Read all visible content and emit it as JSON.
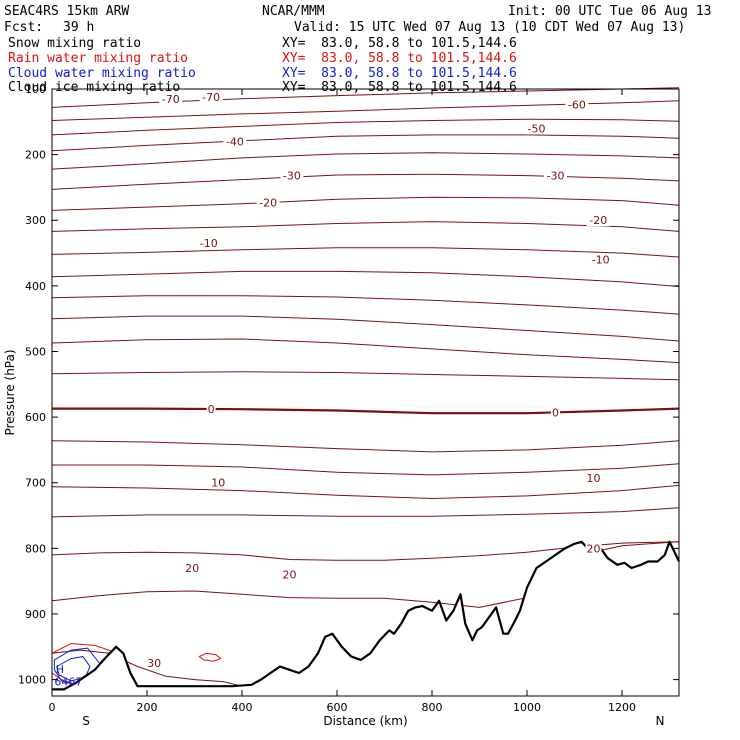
{
  "header": {
    "model": "SEAC4RS 15km ARW",
    "center": "NCAR/MMM",
    "init": "Init: 00 UTC Tue 06 Aug 13",
    "fcst_label": "Fcst:",
    "fcst_value": "39 h",
    "valid": "Valid: 15 UTC Wed 07 Aug 13 (10 CDT Wed 07 Aug 13)"
  },
  "legend": [
    {
      "label": "Snow mixing ratio",
      "xy": "XY=  83.0, 58.8 to 101.5,144.6",
      "color": "#000000"
    },
    {
      "label": "Rain water mixing ratio",
      "xy": "XY=  83.0, 58.8 to 101.5,144.6",
      "color": "#e01010"
    },
    {
      "label": "Cloud water mixing ratio",
      "xy": "XY=  83.0, 58.8 to 101.5,144.6",
      "color": "#1020d0"
    },
    {
      "label": "Cloud ice mixing ratio",
      "xy": "XY=  83.0, 58.8 to 101.5,144.6",
      "color": "#000000"
    }
  ],
  "chart_data": {
    "type": "line",
    "xlabel": "Distance (km)",
    "ylabel": "Pressure (hPa)",
    "xlim": [
      0,
      1320
    ],
    "ylim": [
      100,
      1025
    ],
    "y_reversed": true,
    "x_ticks": [
      0,
      200,
      400,
      600,
      800,
      1000,
      1200
    ],
    "y_ticks": [
      200,
      300,
      400,
      500,
      600,
      700,
      800,
      900,
      1000
    ],
    "y_top_tick": "100",
    "endpoints": {
      "left": "S",
      "right": "N"
    },
    "contour_color": "#7a1010",
    "terrain_color": "#000000",
    "isotherms": [
      {
        "x": [
          0,
          200,
          400,
          600,
          800,
          1000,
          1200,
          1320
        ],
        "y": [
          128,
          121,
          115,
          110,
          106,
          103,
          100,
          98
        ]
      },
      {
        "x": [
          0,
          200,
          400,
          600,
          800,
          1000,
          1200,
          1320
        ],
        "y": [
          148,
          143,
          138,
          134,
          129,
          125,
          121,
          118
        ]
      },
      {
        "x": [
          0,
          200,
          400,
          600,
          800,
          1000,
          1200,
          1320
        ],
        "y": [
          170,
          163,
          157,
          151,
          148,
          146,
          147,
          149
        ]
      },
      {
        "x": [
          0,
          200,
          400,
          600,
          800,
          1000,
          1200,
          1320
        ],
        "y": [
          194,
          186,
          179,
          172,
          170,
          170,
          172,
          175
        ]
      },
      {
        "x": [
          0,
          200,
          400,
          600,
          800,
          1000,
          1200,
          1320
        ],
        "y": [
          222,
          214,
          205,
          199,
          197,
          199,
          202,
          205
        ]
      },
      {
        "x": [
          0,
          200,
          400,
          600,
          800,
          1000,
          1200,
          1320
        ],
        "y": [
          253,
          245,
          238,
          231,
          230,
          232,
          236,
          240
        ]
      },
      {
        "x": [
          0,
          200,
          400,
          600,
          800,
          1000,
          1200,
          1320
        ],
        "y": [
          285,
          280,
          275,
          268,
          265,
          266,
          270,
          277
        ]
      },
      {
        "x": [
          0,
          200,
          400,
          600,
          800,
          1000,
          1200,
          1320
        ],
        "y": [
          317,
          313,
          310,
          305,
          302,
          305,
          310,
          317
        ]
      },
      {
        "x": [
          0,
          200,
          400,
          600,
          800,
          1000,
          1200,
          1320
        ],
        "y": [
          352,
          349,
          345,
          342,
          342,
          345,
          350,
          356
        ]
      },
      {
        "x": [
          0,
          200,
          400,
          600,
          800,
          1000,
          1200,
          1320
        ],
        "y": [
          386,
          382,
          378,
          378,
          380,
          386,
          394,
          401
        ]
      },
      {
        "x": [
          0,
          200,
          400,
          600,
          800,
          1000,
          1200,
          1320
        ],
        "y": [
          418,
          415,
          415,
          417,
          422,
          429,
          437,
          443
        ]
      },
      {
        "x": [
          0,
          200,
          400,
          600,
          800,
          1000,
          1200,
          1320
        ],
        "y": [
          450,
          446,
          446,
          451,
          459,
          468,
          477,
          484
        ]
      },
      {
        "x": [
          0,
          200,
          400,
          600,
          800,
          1000,
          1200,
          1320
        ],
        "y": [
          487,
          482,
          481,
          487,
          496,
          505,
          512,
          517
        ]
      },
      {
        "x": [
          0,
          200,
          400,
          600,
          800,
          1000,
          1200,
          1320
        ],
        "y": [
          534,
          532,
          531,
          532,
          535,
          538,
          541,
          543
        ]
      },
      {
        "x": [
          0,
          200,
          400,
          600,
          800,
          1000,
          1200,
          1320
        ],
        "y": [
          587,
          587,
          588,
          590,
          594,
          594,
          590,
          587
        ],
        "bold": true
      },
      {
        "x": [
          0,
          200,
          400,
          600,
          800,
          1000,
          1200,
          1320
        ],
        "y": [
          636,
          638,
          642,
          648,
          653,
          650,
          643,
          636
        ]
      },
      {
        "x": [
          0,
          200,
          400,
          600,
          800,
          1000,
          1200,
          1320
        ],
        "y": [
          673,
          673,
          676,
          684,
          688,
          684,
          678,
          671
        ]
      },
      {
        "x": [
          0,
          200,
          400,
          600,
          800,
          1000,
          1200,
          1320
        ],
        "y": [
          706,
          708,
          712,
          719,
          724,
          720,
          712,
          704
        ]
      },
      {
        "x": [
          0,
          200,
          400,
          600,
          800,
          1000,
          1200,
          1320
        ],
        "y": [
          752,
          749,
          749,
          751,
          751,
          748,
          744,
          738
        ]
      },
      {
        "x": [
          0,
          100,
          200,
          300,
          400,
          500,
          600,
          700,
          800,
          900,
          1000,
          1100,
          1200,
          1320
        ],
        "y": [
          810,
          807,
          806,
          807,
          810,
          817,
          818,
          818,
          815,
          811,
          806,
          798,
          792,
          790
        ]
      },
      {
        "x": [
          0,
          100,
          200,
          300,
          400,
          500,
          600,
          700,
          800,
          900,
          1000,
          1100,
          1200,
          1320
        ],
        "y": [
          880,
          872,
          866,
          865,
          870,
          875,
          876,
          876,
          882,
          890,
          875,
          812,
          796,
          790
        ]
      },
      {
        "x": [
          0,
          60,
          120,
          180,
          240,
          300,
          360,
          400,
          440
        ],
        "y": [
          960,
          955,
          960,
          980,
          995,
          1000,
          1003,
          1010,
          1022
        ]
      }
    ],
    "isotherm_labels": [
      {
        "text": "-70",
        "x": 250,
        "y": 115
      },
      {
        "text": "-70",
        "x": 335,
        "y": 112
      },
      {
        "text": "-60",
        "x": 1105,
        "y": 124
      },
      {
        "text": "-50",
        "x": 1020,
        "y": 160
      },
      {
        "text": "-40",
        "x": 385,
        "y": 180
      },
      {
        "text": "-30",
        "x": 505,
        "y": 232
      },
      {
        "text": "-30",
        "x": 1060,
        "y": 232
      },
      {
        "text": "-20",
        "x": 455,
        "y": 273
      },
      {
        "text": "-20",
        "x": 1150,
        "y": 300
      },
      {
        "text": "-10",
        "x": 330,
        "y": 335
      },
      {
        "text": "-10",
        "x": 1155,
        "y": 360
      },
      {
        "text": "0",
        "x": 335,
        "y": 588
      },
      {
        "text": "0",
        "x": 1060,
        "y": 593
      },
      {
        "text": "10",
        "x": 350,
        "y": 700
      },
      {
        "text": "10",
        "x": 1140,
        "y": 693
      },
      {
        "text": "20",
        "x": 295,
        "y": 830
      },
      {
        "text": "20",
        "x": 500,
        "y": 840
      },
      {
        "text": "20",
        "x": 1140,
        "y": 800
      },
      {
        "text": "30",
        "x": 215,
        "y": 975
      }
    ],
    "terrain": {
      "x": [
        0,
        25,
        50,
        70,
        90,
        115,
        135,
        150,
        165,
        180,
        200,
        230,
        260,
        300,
        340,
        380,
        420,
        440,
        460,
        480,
        500,
        520,
        540,
        560,
        575,
        590,
        610,
        630,
        650,
        670,
        690,
        710,
        720,
        735,
        750,
        765,
        780,
        800,
        815,
        830,
        845,
        860,
        870,
        885,
        895,
        905,
        920,
        935,
        950,
        960,
        975,
        985,
        1000,
        1020,
        1040,
        1060,
        1080,
        1100,
        1115,
        1125,
        1140,
        1155,
        1170,
        1190,
        1205,
        1220,
        1240,
        1255,
        1275,
        1290,
        1300,
        1310,
        1320
      ],
      "y": [
        1015,
        1015,
        1005,
        995,
        985,
        965,
        950,
        960,
        990,
        1010,
        1010,
        1010,
        1010,
        1010,
        1010,
        1010,
        1008,
        1000,
        990,
        980,
        985,
        990,
        980,
        960,
        935,
        930,
        950,
        965,
        970,
        960,
        940,
        925,
        930,
        915,
        895,
        890,
        888,
        895,
        880,
        910,
        895,
        870,
        915,
        940,
        925,
        920,
        905,
        890,
        930,
        930,
        910,
        895,
        860,
        830,
        820,
        810,
        800,
        793,
        790,
        798,
        793,
        800,
        815,
        825,
        822,
        830,
        825,
        820,
        820,
        810,
        790,
        805,
        820
      ]
    },
    "cloud_water": [
      {
        "x": [
          5,
          40,
          75,
          100,
          90,
          60,
          20,
          5
        ],
        "y": [
          970,
          955,
          952,
          975,
          1000,
          1010,
          1002,
          985
        ]
      },
      {
        "x": [
          10,
          40,
          65,
          80,
          70,
          40,
          15
        ],
        "y": [
          980,
          968,
          965,
          980,
          997,
          1002,
          993
        ]
      }
    ],
    "rain_water": [
      {
        "x": [
          0,
          40,
          90,
          140,
          155,
          140,
          100,
          60,
          20,
          0
        ],
        "y": [
          960,
          945,
          948,
          960,
          985,
          1010,
          1012,
          1010,
          1000,
          990
        ]
      },
      {
        "x": [
          310,
          325,
          345,
          355,
          340,
          320,
          310
        ],
        "y": [
          965,
          960,
          962,
          968,
          972,
          970,
          965
        ]
      }
    ],
    "annotations": [
      {
        "text": "H",
        "x": 8,
        "y": 984,
        "color": "#1020d0"
      },
      {
        "text": "6467",
        "x": 5,
        "y": 1003,
        "color": "#1020d0"
      }
    ]
  }
}
